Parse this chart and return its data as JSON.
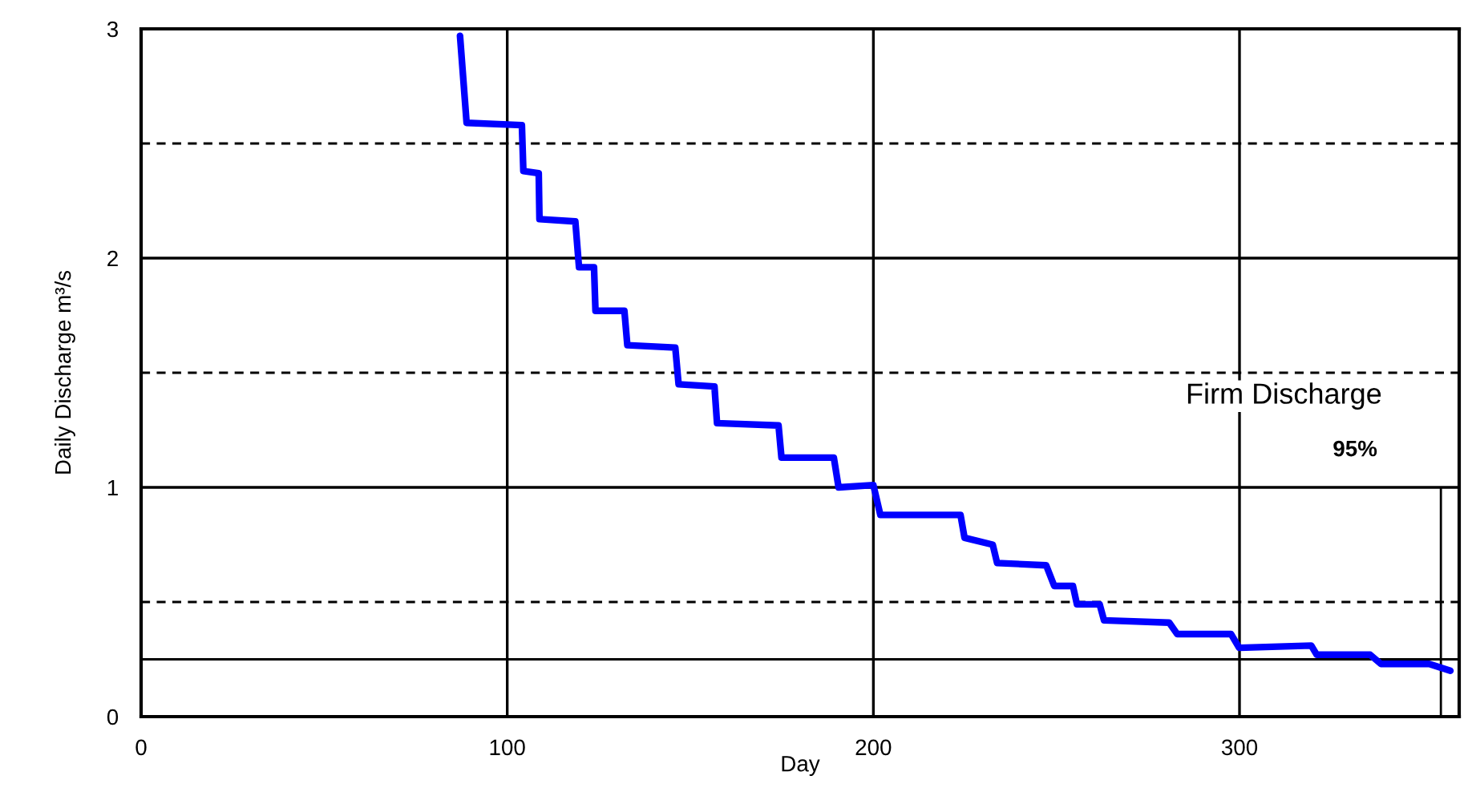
{
  "chart_data": {
    "type": "line",
    "xlabel": "Day",
    "ylabel": "Daily Discharge m³/s",
    "xlim": [
      0,
      360
    ],
    "ylim": [
      0,
      3
    ],
    "xticks": [
      0,
      100,
      200,
      300
    ],
    "yticks": [
      0,
      1,
      2,
      3
    ],
    "grid": true,
    "marker": "none",
    "line_style": "solid",
    "series": [
      {
        "color": "#0000ff",
        "x": [
          87.1,
          88.9,
          104,
          104.4,
          108.6,
          108.8,
          118.6,
          119.6,
          123.7,
          124.1,
          132,
          132.8,
          145.9,
          146.8,
          156.6,
          157.3,
          174.1,
          174.9,
          189.2,
          190.5,
          200,
          201.9,
          223.8,
          224.9,
          232.6,
          233.8,
          247.2,
          249.4,
          254.5,
          255.6,
          261.8,
          263,
          280.8,
          283,
          297.7,
          299.9,
          319.6,
          321.1,
          335.7,
          338.6,
          351.8,
          357.6
        ],
        "values": [
          2.97,
          2.59,
          2.58,
          2.38,
          2.37,
          2.17,
          2.16,
          1.96,
          1.96,
          1.77,
          1.77,
          1.62,
          1.61,
          1.45,
          1.44,
          1.28,
          1.27,
          1.13,
          1.13,
          1.0,
          1.01,
          0.88,
          0.88,
          0.78,
          0.75,
          0.67,
          0.66,
          0.57,
          0.57,
          0.49,
          0.49,
          0.42,
          0.41,
          0.36,
          0.36,
          0.3,
          0.31,
          0.27,
          0.27,
          0.23,
          0.23,
          0.2
        ]
      }
    ],
    "ref_lines": [
      {
        "axis": "y",
        "value": 0.5,
        "line_style": "dashed"
      },
      {
        "axis": "y",
        "value": 1.5,
        "line_style": "dashed"
      },
      {
        "axis": "y",
        "value": 2.5,
        "line_style": "dashed"
      },
      {
        "axis": "y",
        "value": 0.25,
        "line_style": "solid"
      },
      {
        "axis": "x",
        "value": 355,
        "line_style": "solid"
      }
    ],
    "annotations": [
      "Firm Discharge",
      "95%"
    ]
  }
}
